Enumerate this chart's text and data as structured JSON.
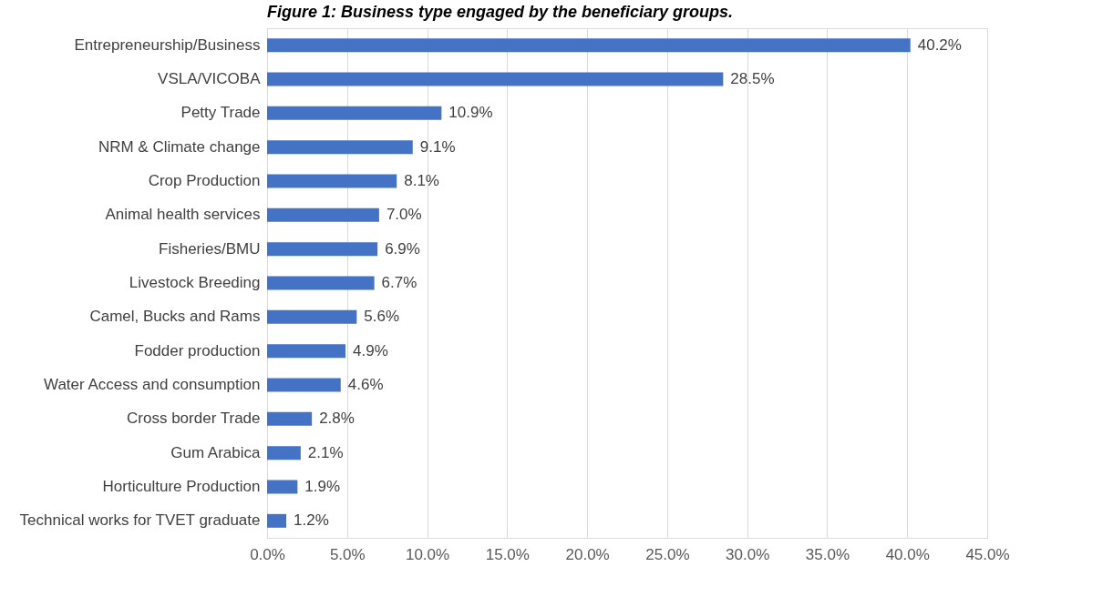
{
  "chart_data": {
    "type": "bar",
    "orientation": "horizontal",
    "title": "Figure 1: Business type engaged by the beneficiary groups.",
    "categories": [
      "Entrepreneurship/Business",
      "VSLA/VICOBA",
      "Petty Trade",
      "NRM & Climate change",
      "Crop Production",
      "Animal health services",
      "Fisheries/BMU",
      "Livestock Breeding",
      "Camel, Bucks and Rams",
      "Fodder production",
      "Water Access and consumption",
      "Cross border Trade",
      "Gum Arabica",
      "Horticulture Production",
      "Technical works for TVET graduate"
    ],
    "values": [
      40.2,
      28.5,
      10.9,
      9.1,
      8.1,
      7.0,
      6.9,
      6.7,
      5.6,
      4.9,
      4.6,
      2.8,
      2.1,
      1.9,
      1.2
    ],
    "value_labels": [
      "40.2%",
      "28.5%",
      "10.9%",
      "9.1%",
      "8.1%",
      "7.0%",
      "6.9%",
      "6.7%",
      "5.6%",
      "4.9%",
      "4.6%",
      "2.8%",
      "2.1%",
      "1.9%",
      "1.2%"
    ],
    "color": "#4472c4",
    "xlim": [
      0,
      45
    ],
    "xticks": [
      {
        "value": 0,
        "label": "0.0%"
      },
      {
        "value": 5,
        "label": "5.0%"
      },
      {
        "value": 10,
        "label": "10.0%"
      },
      {
        "value": 15,
        "label": "15.0%"
      },
      {
        "value": 20,
        "label": "20.0%"
      },
      {
        "value": 25,
        "label": "25.0%"
      },
      {
        "value": 30,
        "label": "30.0%"
      },
      {
        "value": 35,
        "label": "35.0%"
      },
      {
        "value": 40,
        "label": "40.0%"
      },
      {
        "value": 45,
        "label": "45.0%"
      }
    ],
    "grid": "x"
  }
}
